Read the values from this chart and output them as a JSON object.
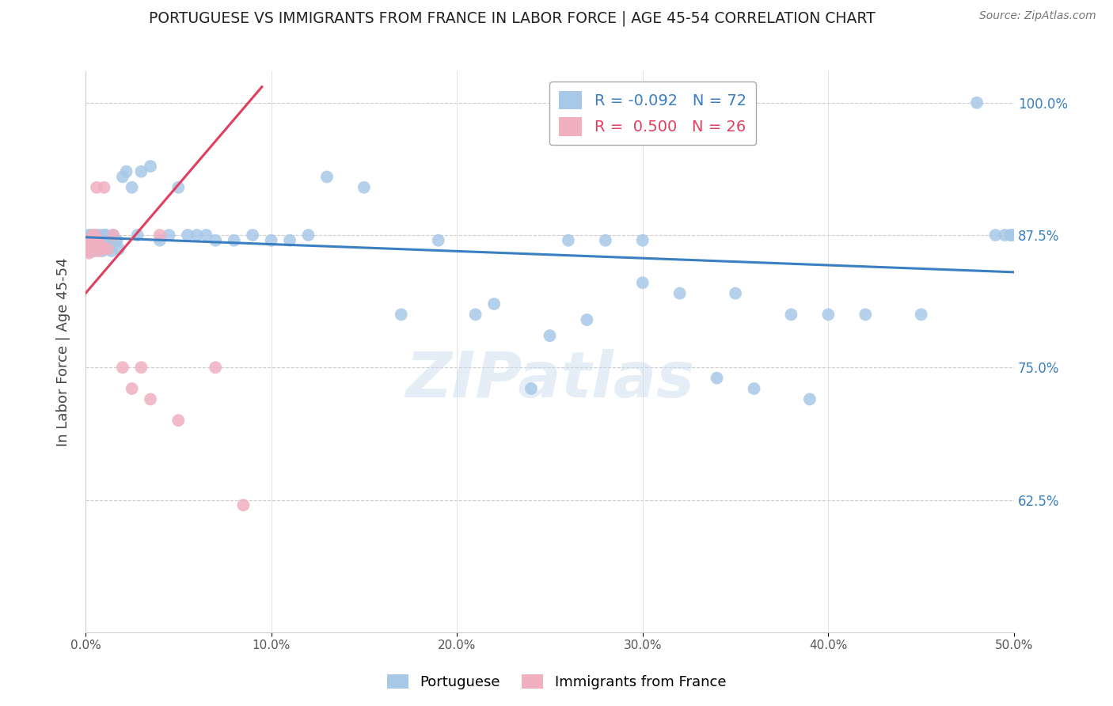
{
  "title": "PORTUGUESE VS IMMIGRANTS FROM FRANCE IN LABOR FORCE | AGE 45-54 CORRELATION CHART",
  "source": "Source: ZipAtlas.com",
  "ylabel": "In Labor Force | Age 45-54",
  "xlim": [
    0.0,
    0.5
  ],
  "ylim": [
    0.5,
    1.03
  ],
  "xticks": [
    0.0,
    0.1,
    0.2,
    0.3,
    0.4,
    0.5
  ],
  "yticks": [
    0.625,
    0.75,
    0.875,
    1.0
  ],
  "ytick_labels": [
    "62.5%",
    "75.0%",
    "87.5%",
    "100.0%"
  ],
  "xtick_labels": [
    "0.0%",
    "10.0%",
    "20.0%",
    "30.0%",
    "40.0%",
    "50.0%"
  ],
  "blue_R": -0.092,
  "blue_N": 72,
  "pink_R": 0.5,
  "pink_N": 26,
  "blue_color": "#a8c8e8",
  "pink_color": "#f0b0c0",
  "blue_line_color": "#3a7fc1",
  "pink_line_color": "#e04060",
  "legend_edge_color": "#aaaaaa",
  "watermark": "ZIPatlas",
  "blue_line_x0": 0.0,
  "blue_line_x1": 0.5,
  "blue_line_y0": 0.873,
  "blue_line_y1": 0.84,
  "pink_line_x0": 0.0,
  "pink_line_x1": 0.095,
  "pink_line_y0": 0.82,
  "pink_line_y1": 1.015,
  "blue_x": [
    0.001,
    0.002,
    0.002,
    0.003,
    0.003,
    0.004,
    0.004,
    0.005,
    0.005,
    0.006,
    0.006,
    0.007,
    0.007,
    0.008,
    0.008,
    0.009,
    0.009,
    0.01,
    0.01,
    0.011,
    0.012,
    0.013,
    0.014,
    0.015,
    0.016,
    0.017,
    0.018,
    0.02,
    0.022,
    0.025,
    0.028,
    0.03,
    0.035,
    0.04,
    0.045,
    0.05,
    0.055,
    0.06,
    0.065,
    0.07,
    0.08,
    0.09,
    0.1,
    0.11,
    0.12,
    0.13,
    0.15,
    0.17,
    0.19,
    0.21,
    0.22,
    0.24,
    0.26,
    0.28,
    0.3,
    0.32,
    0.35,
    0.38,
    0.4,
    0.42,
    0.45,
    0.48,
    0.49,
    0.495,
    0.498,
    0.499,
    0.25,
    0.27,
    0.3,
    0.34,
    0.36,
    0.39
  ],
  "blue_y": [
    0.87,
    0.875,
    0.86,
    0.875,
    0.862,
    0.87,
    0.865,
    0.875,
    0.86,
    0.87,
    0.862,
    0.875,
    0.862,
    0.87,
    0.865,
    0.875,
    0.86,
    0.875,
    0.862,
    0.875,
    0.87,
    0.87,
    0.86,
    0.875,
    0.87,
    0.87,
    0.862,
    0.93,
    0.935,
    0.92,
    0.875,
    0.935,
    0.94,
    0.87,
    0.875,
    0.92,
    0.875,
    0.875,
    0.875,
    0.87,
    0.87,
    0.875,
    0.87,
    0.87,
    0.875,
    0.93,
    0.92,
    0.8,
    0.87,
    0.8,
    0.81,
    0.73,
    0.87,
    0.87,
    0.87,
    0.82,
    0.82,
    0.8,
    0.8,
    0.8,
    0.8,
    1.0,
    0.875,
    0.875,
    0.875,
    0.875,
    0.78,
    0.795,
    0.83,
    0.74,
    0.73,
    0.72
  ],
  "pink_x": [
    0.001,
    0.001,
    0.002,
    0.002,
    0.003,
    0.003,
    0.004,
    0.004,
    0.005,
    0.006,
    0.006,
    0.007,
    0.007,
    0.008,
    0.009,
    0.01,
    0.012,
    0.015,
    0.02,
    0.025,
    0.03,
    0.035,
    0.04,
    0.05,
    0.07,
    0.085
  ],
  "pink_y": [
    0.87,
    0.86,
    0.87,
    0.858,
    0.87,
    0.862,
    0.875,
    0.862,
    0.875,
    0.87,
    0.92,
    0.87,
    0.86,
    0.865,
    0.862,
    0.92,
    0.862,
    0.875,
    0.75,
    0.73,
    0.75,
    0.72,
    0.875,
    0.7,
    0.75,
    0.62
  ]
}
